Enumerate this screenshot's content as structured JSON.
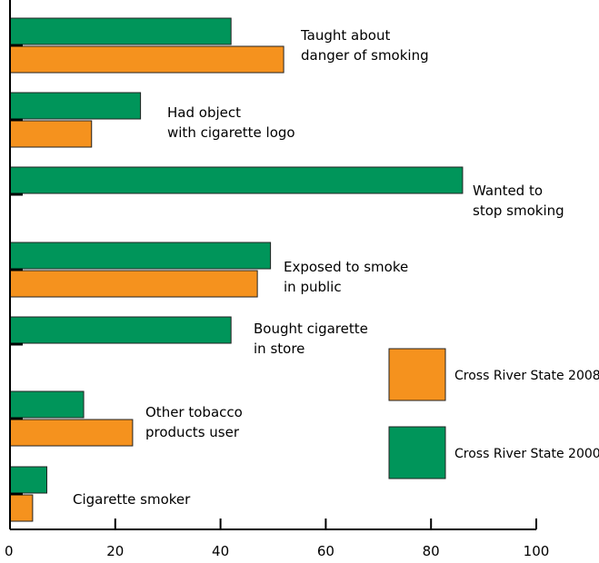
{
  "chart_data": {
    "type": "bar",
    "orientation": "horizontal",
    "xlim": [
      0,
      100
    ],
    "x_ticks": [
      "0",
      "20",
      "40",
      "60",
      "80",
      "100"
    ],
    "categories": [
      [
        "Taught about",
        "danger of smoking"
      ],
      [
        "Had object",
        "with cigarette logo"
      ],
      [
        "Wanted to",
        "stop smoking"
      ],
      [
        "Exposed to smoke",
        "in public"
      ],
      [
        "Bought cigarette",
        "in store"
      ],
      [
        "Other tobacco",
        "products user"
      ],
      [
        "Cigarette smoker"
      ]
    ],
    "series": [
      {
        "name": "Cross River State 2000",
        "color": "#00955a",
        "values": [
          42,
          24.8,
          86,
          49.5,
          42,
          14,
          7
        ]
      },
      {
        "name": "Cross River State 2008",
        "color": "#f5921e",
        "values": [
          52,
          15.5,
          null,
          47,
          null,
          23.3,
          4.3
        ]
      }
    ],
    "legend": {
      "position": "right",
      "items": [
        {
          "label": "Cross River State 2008",
          "color": "#f5921e"
        },
        {
          "label": "Cross River State 2000",
          "color": "#00955a"
        }
      ]
    },
    "grid": false
  }
}
